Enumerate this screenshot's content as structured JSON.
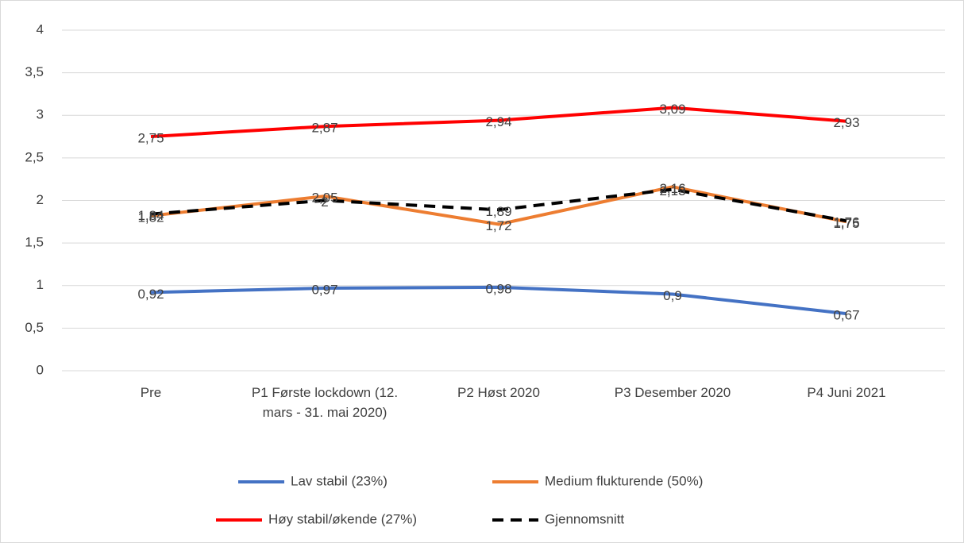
{
  "chart_data": {
    "type": "line",
    "categories": [
      "Pre",
      "P1 Første lockdown (12. mars - 31. mai 2020)",
      "P2 Høst 2020",
      "P3 Desember 2020",
      "P4 Juni 2021"
    ],
    "series": [
      {
        "name": "Lav stabil (23%)",
        "color": "#4472c4",
        "values": [
          0.92,
          0.97,
          0.98,
          0.9,
          0.67
        ],
        "value_labels": [
          "0,92",
          "0,97",
          "0,98",
          "0,9",
          "0,67"
        ]
      },
      {
        "name": "Medium flukturende (50%)",
        "color": "#ed7d31",
        "values": [
          1.82,
          2.05,
          1.72,
          2.16,
          1.75
        ],
        "value_labels": [
          "1,82",
          "2,05",
          "1,72",
          "2,16",
          "1,75"
        ]
      },
      {
        "name": "Høy stabil/økende (27%)",
        "color": "#ff0000",
        "values": [
          2.75,
          2.87,
          2.94,
          3.09,
          2.93
        ],
        "value_labels": [
          "2,75",
          "2,87",
          "2,94",
          "3,09",
          "2,93"
        ]
      },
      {
        "name": "Gjennomsnitt",
        "color": "#000000",
        "dashed": true,
        "values": [
          1.84,
          2,
          1.89,
          2.13,
          1.76
        ],
        "value_labels": [
          "1,84",
          "2",
          "1,89",
          "2,13",
          "1,76"
        ]
      }
    ],
    "ylim": [
      0,
      4
    ],
    "yticks": [
      0,
      {
        "value": 0.5,
        "label": "0,5"
      },
      1,
      {
        "value": 1.5,
        "label": "1,5"
      },
      2,
      {
        "value": 2.5,
        "label": "2,5"
      },
      3,
      {
        "value": 3.5,
        "label": "3,5"
      },
      4
    ],
    "grid": true,
    "legend": "bottom"
  }
}
